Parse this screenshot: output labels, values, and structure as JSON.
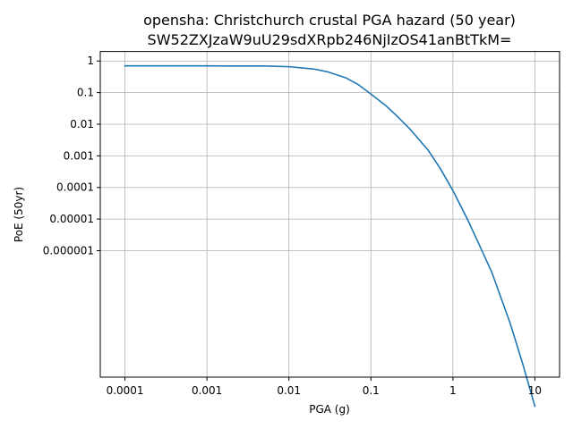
{
  "chart_data": {
    "type": "line",
    "title": "opensha: Christchurch crustal PGA hazard (50 year)",
    "subtitle": "SW52ZXJzaW9uU29sdXRpb246NjIzOS41anBtTkM=",
    "xlabel": "PGA (g)",
    "ylabel": "PoE (50yr)",
    "xscale": "log",
    "yscale": "log",
    "xlim": [
      5e-05,
      20
    ],
    "ylim": [
      1e-10,
      2
    ],
    "grid": true,
    "x_tick_values": [
      0.0001,
      0.001,
      0.01,
      0.1,
      1,
      10
    ],
    "x_tick_labels": [
      "0.0001",
      "0.001",
      "0.01",
      "0.1",
      "1",
      "10"
    ],
    "y_tick_values": [
      1,
      0.1,
      0.01,
      0.001,
      0.0001,
      1e-05,
      1e-06
    ],
    "y_tick_labels": [
      "1",
      "0.1",
      "0.01",
      "0.001",
      "0.0001",
      "0.00001",
      "0.000001"
    ],
    "series": [
      {
        "color": "#1f77b4",
        "x": [
          0.0001,
          0.001,
          0.005,
          0.01,
          0.02,
          0.03,
          0.05,
          0.07,
          0.1,
          0.15,
          0.2,
          0.3,
          0.5,
          0.7,
          1,
          1.5,
          2,
          3,
          5,
          7,
          10
        ],
        "y": [
          0.7,
          0.7,
          0.695,
          0.66,
          0.56,
          0.45,
          0.29,
          0.18,
          0.09,
          0.04,
          0.02,
          0.007,
          0.0015,
          0.0004,
          8e-05,
          1e-05,
          2e-06,
          2e-07,
          5e-09,
          3e-10,
          1.2e-11
        ]
      }
    ]
  }
}
